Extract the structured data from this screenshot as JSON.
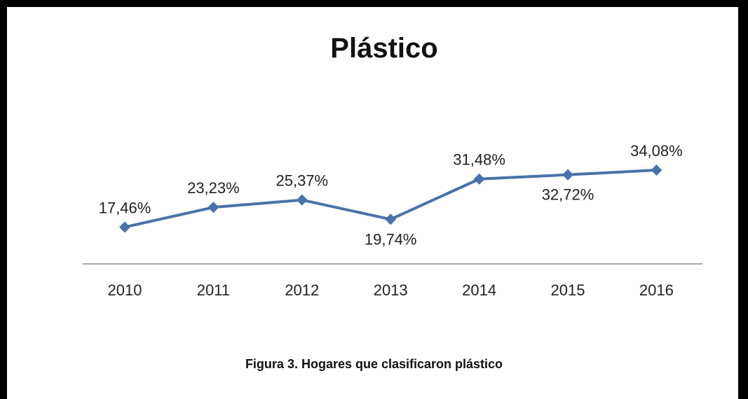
{
  "caption": "Figura 3. Hogares que clasificaron plástico",
  "colors": {
    "series": "#4a72a8",
    "axis": "#8c8c8c",
    "frame": "#000000"
  },
  "chart_data": {
    "type": "line",
    "title": "Plástico",
    "xlabel": "",
    "ylabel": "",
    "categories": [
      "2010",
      "2011",
      "2012",
      "2013",
      "2014",
      "2015",
      "2016"
    ],
    "series": [
      {
        "values": [
          17.46,
          23.23,
          25.37,
          19.74,
          31.48,
          32.72,
          34.08
        ],
        "labels": [
          "17,46%",
          "23,23%",
          "25,37%",
          "19,74%",
          "31,48%",
          "32,72%",
          "34,08%"
        ],
        "marker": "diamond"
      }
    ],
    "label_positions": [
      "above",
      "above",
      "above",
      "below",
      "above",
      "below",
      "above"
    ],
    "ylim": [
      0,
      40
    ],
    "grid": false,
    "legend": "none"
  }
}
